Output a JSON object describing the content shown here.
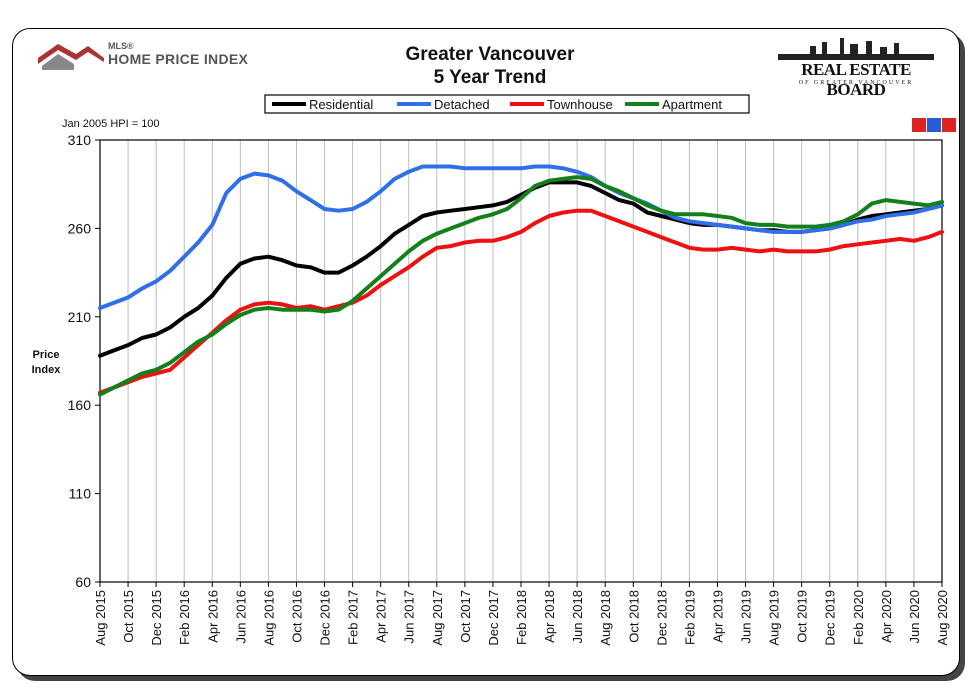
{
  "header": {
    "title_line1": "Greater Vancouver",
    "title_line2": "5 Year Trend",
    "left_logo_small": "MLS®",
    "left_logo_text": "HOME PRICE INDEX",
    "right_logo_text": "REAL ESTATE BOARD",
    "right_logo_sub": "OF GREATER VANCOUVER",
    "badge_text": "MLS"
  },
  "colors": {
    "residential": "#000000",
    "detached": "#2f6fe8",
    "townhouse": "#ee1111",
    "apartment": "#13801b"
  },
  "chart_data": {
    "type": "line",
    "title": "Greater Vancouver 5 Year Trend",
    "note": "Jan 2005 HPI = 100",
    "ylabel": "Price Index",
    "xlabel": "",
    "ylim": [
      60,
      310
    ],
    "yticks": [
      60,
      110,
      160,
      210,
      260,
      310
    ],
    "grid": "vertical",
    "legend_position": "top",
    "x_tick_labels": [
      "Aug 2015",
      "Oct 2015",
      "Dec 2015",
      "Feb 2016",
      "Apr 2016",
      "Jun 2016",
      "Aug 2016",
      "Oct 2016",
      "Dec 2016",
      "Feb 2017",
      "Apr 2017",
      "Jun 2017",
      "Aug 2017",
      "Oct 2017",
      "Dec 2017",
      "Feb 2018",
      "Apr 2018",
      "Jun 2018",
      "Aug 2018",
      "Oct 2018",
      "Dec 2018",
      "Feb 2019",
      "Apr 2019",
      "Jun 2019",
      "Aug 2019",
      "Oct 2019",
      "Dec 2019",
      "Feb 2020",
      "Apr 2020",
      "Jun 2020",
      "Aug 2020"
    ],
    "x": [
      "Aug 2015",
      "Sep 2015",
      "Oct 2015",
      "Nov 2015",
      "Dec 2015",
      "Jan 2016",
      "Feb 2016",
      "Mar 2016",
      "Apr 2016",
      "May 2016",
      "Jun 2016",
      "Jul 2016",
      "Aug 2016",
      "Sep 2016",
      "Oct 2016",
      "Nov 2016",
      "Dec 2016",
      "Jan 2017",
      "Feb 2017",
      "Mar 2017",
      "Apr 2017",
      "May 2017",
      "Jun 2017",
      "Jul 2017",
      "Aug 2017",
      "Sep 2017",
      "Oct 2017",
      "Nov 2017",
      "Dec 2017",
      "Jan 2018",
      "Feb 2018",
      "Mar 2018",
      "Apr 2018",
      "May 2018",
      "Jun 2018",
      "Jul 2018",
      "Aug 2018",
      "Sep 2018",
      "Oct 2018",
      "Nov 2018",
      "Dec 2018",
      "Jan 2019",
      "Feb 2019",
      "Mar 2019",
      "Apr 2019",
      "May 2019",
      "Jun 2019",
      "Jul 2019",
      "Aug 2019",
      "Sep 2019",
      "Oct 2019",
      "Nov 2019",
      "Dec 2019",
      "Jan 2020",
      "Feb 2020",
      "Mar 2020",
      "Apr 2020",
      "May 2020",
      "Jun 2020",
      "Jul 2020",
      "Aug 2020"
    ],
    "series": [
      {
        "name": "Residential",
        "color": "#000000",
        "values": [
          188,
          191,
          194,
          198,
          200,
          204,
          210,
          215,
          222,
          232,
          240,
          243,
          244,
          242,
          239,
          238,
          235,
          235,
          239,
          244,
          250,
          257,
          262,
          267,
          269,
          270,
          271,
          272,
          273,
          275,
          279,
          283,
          286,
          286,
          286,
          284,
          280,
          276,
          274,
          269,
          267,
          265,
          263,
          262,
          262,
          261,
          260,
          259,
          259,
          258,
          258,
          259,
          260,
          262,
          265,
          267,
          268,
          269,
          270,
          271,
          273
        ]
      },
      {
        "name": "Detached",
        "color": "#2f6fe8",
        "values": [
          215,
          218,
          221,
          226,
          230,
          236,
          244,
          252,
          262,
          280,
          288,
          291,
          290,
          287,
          281,
          276,
          271,
          270,
          271,
          275,
          281,
          288,
          292,
          295,
          295,
          295,
          294,
          294,
          294,
          294,
          294,
          295,
          295,
          294,
          292,
          289,
          284,
          280,
          277,
          274,
          270,
          266,
          264,
          263,
          262,
          261,
          260,
          259,
          258,
          258,
          258,
          259,
          260,
          262,
          264,
          265,
          267,
          268,
          269,
          271,
          273
        ]
      },
      {
        "name": "Townhouse",
        "color": "#ee1111",
        "values": [
          167,
          170,
          173,
          176,
          178,
          180,
          187,
          194,
          201,
          208,
          214,
          217,
          218,
          217,
          215,
          216,
          214,
          216,
          218,
          222,
          228,
          233,
          238,
          244,
          249,
          250,
          252,
          253,
          253,
          255,
          258,
          263,
          267,
          269,
          270,
          270,
          267,
          264,
          261,
          258,
          255,
          252,
          249,
          248,
          248,
          249,
          248,
          247,
          248,
          247,
          247,
          247,
          248,
          250,
          251,
          252,
          253,
          254,
          253,
          255,
          258
        ]
      },
      {
        "name": "Apartment",
        "color": "#13801b",
        "values": [
          166,
          170,
          174,
          178,
          180,
          184,
          190,
          196,
          200,
          206,
          211,
          214,
          215,
          214,
          214,
          214,
          213,
          214,
          219,
          226,
          233,
          240,
          247,
          253,
          257,
          260,
          263,
          266,
          268,
          271,
          277,
          284,
          287,
          288,
          289,
          288,
          284,
          281,
          277,
          273,
          270,
          268,
          268,
          268,
          267,
          266,
          263,
          262,
          262,
          261,
          261,
          261,
          262,
          264,
          268,
          274,
          276,
          275,
          274,
          273,
          275
        ]
      }
    ]
  }
}
